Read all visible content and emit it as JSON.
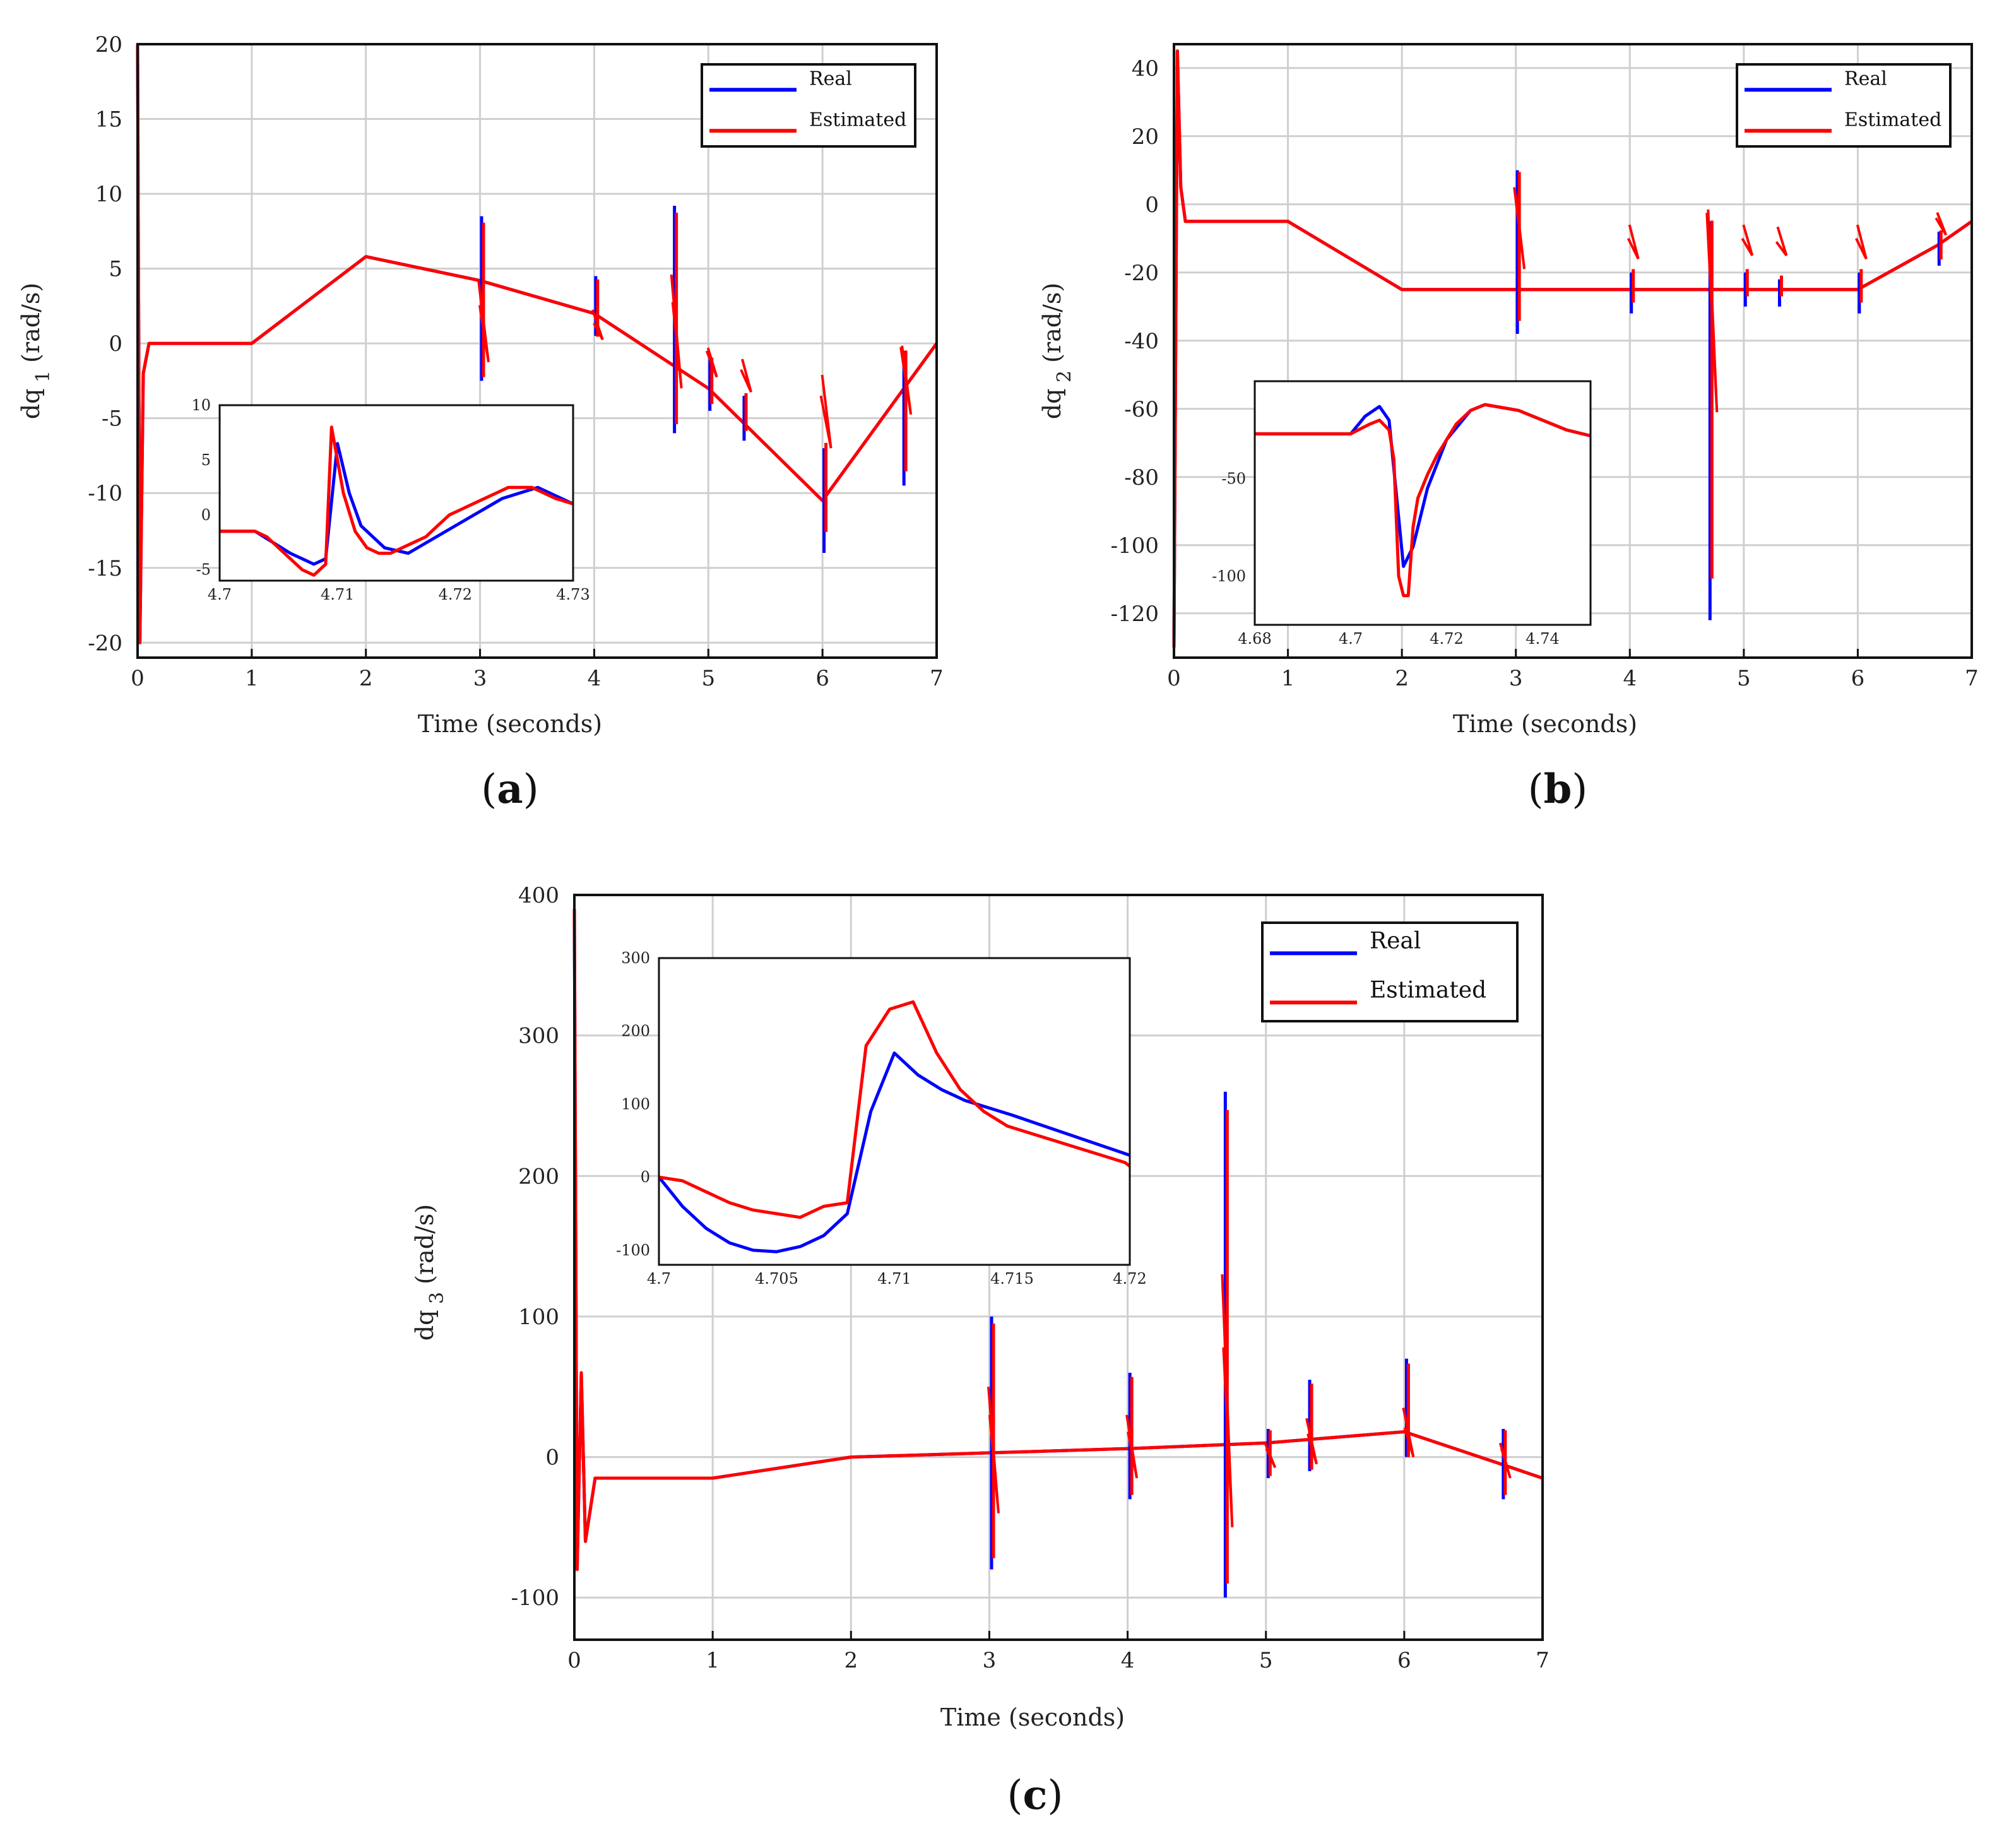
{
  "chart_data": [
    {
      "id": "a",
      "type": "line",
      "subplot_label": "a",
      "xlabel": "Time (seconds)",
      "ylabel_prefix": "dq",
      "ylabel_sub": "1",
      "ylabel_suffix": "(rad/s)",
      "xlim": [
        0,
        7
      ],
      "ylim": [
        -21,
        20
      ],
      "xticks": [
        "0",
        "1",
        "2",
        "3",
        "4",
        "5",
        "6",
        "7"
      ],
      "yticks": [
        "20",
        "15",
        "10",
        "5",
        "0",
        "-5",
        "-10",
        "-15",
        "-20"
      ],
      "ytick_values": [
        20,
        15,
        10,
        5,
        0,
        -5,
        -10,
        -15,
        -20
      ],
      "legend": [
        "Real",
        "Estimated"
      ],
      "series": [
        {
          "name": "Real",
          "x": [
            0,
            0.02,
            0.05,
            0.1,
            1,
            2,
            3,
            4,
            5,
            6,
            7
          ],
          "y": [
            20,
            -20,
            -2,
            0,
            0,
            5.8,
            4.2,
            2,
            -3,
            -10.5,
            0
          ]
        },
        {
          "name": "Estimated",
          "x": [
            0,
            0.02,
            0.05,
            0.1,
            1,
            2,
            3,
            4,
            5,
            6,
            7
          ],
          "y": [
            20,
            -20,
            -2,
            0,
            0,
            5.8,
            4.2,
            2,
            -3,
            -10.5,
            0
          ]
        }
      ],
      "spikes": [
        [
          3.03,
          8.5,
          -2.5
        ],
        [
          4.03,
          4.5,
          0.5
        ],
        [
          4.72,
          9.2,
          -6
        ],
        [
          5.03,
          -1,
          -4.5
        ],
        [
          5.33,
          -3.5,
          -6.5
        ],
        [
          6.03,
          -7,
          -14
        ],
        [
          6.73,
          -0.5,
          -9.5
        ]
      ],
      "inset": {
        "xlim": [
          4.7,
          4.73
        ],
        "ylim": [
          -6,
          10
        ],
        "xticks": [
          "4.7",
          "4.71",
          "4.72",
          "4.73"
        ],
        "xtick_values": [
          4.7,
          4.71,
          4.72,
          4.73
        ],
        "yticks": [
          "10",
          "5",
          "0",
          "-5"
        ],
        "ytick_values": [
          10,
          5,
          0,
          -5
        ],
        "series": [
          {
            "name": "Real",
            "x": [
              4.7,
              4.703,
              4.706,
              4.708,
              4.709,
              4.71,
              4.711,
              4.712,
              4.714,
              4.716,
              4.72,
              4.724,
              4.727,
              4.73
            ],
            "y": [
              -1.5,
              -1.5,
              -3.5,
              -4.5,
              -4,
              6.5,
              2,
              -1,
              -3,
              -3.5,
              -1,
              1.5,
              2.5,
              1
            ]
          },
          {
            "name": "Estimated",
            "x": [
              4.7,
              4.703,
              4.704,
              4.705,
              4.706,
              4.707,
              4.708,
              4.709,
              4.7095,
              4.7105,
              4.7115,
              4.7125,
              4.7135,
              4.7145,
              4.7155,
              4.7165,
              4.7175,
              4.7185,
              4.7195,
              4.7205,
              4.7215,
              4.7225,
              4.7235,
              4.7245,
              4.7255,
              4.7265,
              4.7275,
              4.7285,
              4.73
            ],
            "y": [
              -1.5,
              -1.5,
              -2,
              -3,
              -4,
              -5,
              -5.5,
              -4.5,
              8,
              2,
              -1.5,
              -3,
              -3.5,
              -3.5,
              -3,
              -2.5,
              -2,
              -1,
              0,
              0.5,
              1,
              1.5,
              2,
              2.5,
              2.5,
              2.5,
              2,
              1.5,
              1
            ]
          }
        ]
      }
    },
    {
      "id": "b",
      "type": "line",
      "subplot_label": "b",
      "xlabel": "Time (seconds)",
      "ylabel_prefix": "dq",
      "ylabel_sub": "2",
      "ylabel_suffix": "(rad/s)",
      "xlim": [
        0,
        7
      ],
      "ylim": [
        -133,
        47
      ],
      "xticks": [
        "0",
        "1",
        "2",
        "3",
        "4",
        "5",
        "6",
        "7"
      ],
      "yticks": [
        "40",
        "20",
        "0",
        "-20",
        "-40",
        "-60",
        "-80",
        "-100",
        "-120"
      ],
      "ytick_values": [
        40,
        20,
        0,
        -20,
        -40,
        -60,
        -80,
        -100,
        -120
      ],
      "legend": [
        "Real",
        "Estimated"
      ],
      "series": [
        {
          "name": "Real",
          "x": [
            0,
            0.03,
            0.06,
            0.1,
            1,
            2,
            3,
            4,
            5,
            6,
            6.7,
            7
          ],
          "y": [
            -130,
            45,
            5,
            -5,
            -5,
            -25,
            -25,
            -25,
            -25,
            -25,
            -12,
            -5
          ]
        },
        {
          "name": "Estimated",
          "x": [
            0,
            0.03,
            0.06,
            0.1,
            1,
            2,
            3,
            4,
            5,
            6,
            6.7,
            7
          ],
          "y": [
            -130,
            45,
            5,
            -5,
            -5,
            -25,
            -25,
            -25,
            -25,
            -25,
            -12,
            -5
          ]
        }
      ],
      "spikes": [
        [
          3.03,
          10,
          -38
        ],
        [
          4.03,
          -20,
          -32
        ],
        [
          4.72,
          -5,
          -122
        ],
        [
          5.03,
          -20,
          -30
        ],
        [
          5.33,
          -22,
          -30
        ],
        [
          6.03,
          -20,
          -32
        ],
        [
          6.73,
          -8,
          -18
        ]
      ],
      "inset": {
        "xlim": [
          4.68,
          4.75
        ],
        "ylim": [
          -125,
          0
        ],
        "xticks": [
          "4.68",
          "4.7",
          "4.72",
          "4.74"
        ],
        "xtick_values": [
          4.68,
          4.7,
          4.72,
          4.74
        ],
        "yticks": [
          "-50",
          "-100"
        ],
        "ytick_values": [
          -50,
          -100
        ],
        "series": [
          {
            "name": "Real",
            "x": [
              4.68,
              4.7,
              4.703,
              4.706,
              4.708,
              4.711,
              4.713,
              4.716,
              4.72,
              4.725,
              4.728,
              4.735,
              4.745,
              4.75
            ],
            "y": [
              -27,
              -27,
              -18,
              -13,
              -20,
              -95,
              -85,
              -55,
              -30,
              -15,
              -12,
              -15,
              -25,
              -28
            ]
          },
          {
            "name": "Estimated",
            "x": [
              4.68,
              4.7,
              4.704,
              4.706,
              4.708,
              4.709,
              4.71,
              4.711,
              4.712,
              4.713,
              4.714,
              4.716,
              4.718,
              4.72,
              4.722,
              4.725,
              4.728,
              4.735,
              4.745,
              4.75
            ],
            "y": [
              -27,
              -27,
              -22,
              -20,
              -25,
              -40,
              -100,
              -110,
              -110,
              -75,
              -60,
              -48,
              -38,
              -30,
              -22,
              -15,
              -12,
              -15,
              -25,
              -28
            ]
          }
        ]
      }
    },
    {
      "id": "c",
      "type": "line",
      "subplot_label": "c",
      "xlabel": "Time (seconds)",
      "ylabel_prefix": "dq",
      "ylabel_sub": "3",
      "ylabel_suffix": "(rad/s)",
      "xlim": [
        0,
        7
      ],
      "ylim": [
        -130,
        400
      ],
      "xticks": [
        "0",
        "1",
        "2",
        "3",
        "4",
        "5",
        "6",
        "7"
      ],
      "yticks": [
        "400",
        "300",
        "200",
        "100",
        "0",
        "-100"
      ],
      "ytick_values": [
        400,
        300,
        200,
        100,
        0,
        -100
      ],
      "legend": [
        "Real",
        "Estimated"
      ],
      "series": [
        {
          "name": "Real",
          "x": [
            0,
            0.02,
            0.05,
            0.08,
            0.15,
            1,
            2,
            3,
            4,
            5,
            6,
            6.7,
            7
          ],
          "y": [
            390,
            -80,
            60,
            -60,
            -15,
            -15,
            0,
            3,
            6,
            10,
            18,
            -5,
            -15
          ]
        },
        {
          "name": "Estimated",
          "x": [
            0,
            0.02,
            0.05,
            0.08,
            0.15,
            1,
            2,
            3,
            4,
            5,
            6,
            6.7,
            7
          ],
          "y": [
            390,
            -80,
            60,
            -60,
            -15,
            -15,
            0,
            3,
            6,
            10,
            18,
            -5,
            -15
          ]
        }
      ],
      "spikes": [
        [
          3.03,
          100,
          -80
        ],
        [
          4.03,
          60,
          -30
        ],
        [
          4.72,
          260,
          -100
        ],
        [
          5.03,
          20,
          -15
        ],
        [
          5.33,
          55,
          -10
        ],
        [
          6.03,
          70,
          0
        ],
        [
          6.73,
          20,
          -30
        ]
      ],
      "inset": {
        "xlim": [
          4.7,
          4.72
        ],
        "ylim": [
          -120,
          300
        ],
        "xticks": [
          "4.7",
          "4.705",
          "4.71",
          "4.715",
          "4.72"
        ],
        "xtick_values": [
          4.7,
          4.705,
          4.71,
          4.715,
          4.72
        ],
        "yticks": [
          "300",
          "200",
          "100",
          "0",
          "-100"
        ],
        "ytick_values": [
          300,
          200,
          100,
          0,
          -100
        ],
        "series": [
          {
            "name": "Real",
            "x": [
              4.7,
              4.701,
              4.702,
              4.703,
              4.704,
              4.705,
              4.706,
              4.707,
              4.708,
              4.709,
              4.71,
              4.711,
              4.712,
              4.713,
              4.715,
              4.72
            ],
            "y": [
              0,
              -40,
              -70,
              -90,
              -100,
              -102,
              -95,
              -80,
              -50,
              90,
              170,
              140,
              120,
              105,
              85,
              30
            ]
          },
          {
            "name": "Estimated",
            "x": [
              4.7,
              4.701,
              4.702,
              4.703,
              4.704,
              4.705,
              4.706,
              4.707,
              4.708,
              4.7088,
              4.7098,
              4.7108,
              4.7118,
              4.7128,
              4.7138,
              4.7148,
              4.7158,
              4.7168,
              4.7178,
              4.7188,
              4.7198,
              4.72
            ],
            "y": [
              0,
              -5,
              -20,
              -35,
              -45,
              -50,
              -55,
              -40,
              -35,
              180,
              230,
              240,
              170,
              120,
              90,
              70,
              60,
              50,
              40,
              30,
              20,
              15
            ]
          }
        ]
      }
    }
  ]
}
